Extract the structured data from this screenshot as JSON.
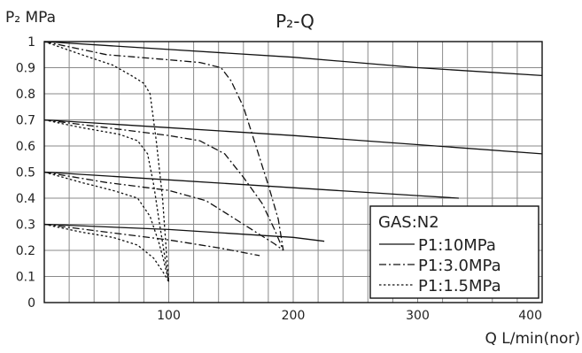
{
  "chart_data": {
    "type": "line",
    "title": "P₂-Q",
    "ylabel": "P₂ MPa",
    "xlabel": "Q L/min(nor)",
    "xlim": [
      0,
      400
    ],
    "ylim": [
      0,
      1
    ],
    "x_ticks": [
      100,
      200,
      300,
      400
    ],
    "x_tick_labels": [
      "100",
      "200",
      "300",
      "400"
    ],
    "y_ticks": [
      0,
      0.1,
      0.2,
      0.3,
      0.4,
      0.5,
      0.6,
      0.7,
      0.8,
      0.9,
      1
    ],
    "y_tick_labels": [
      "0",
      "0.1",
      "0.2",
      "0.3",
      "0.4",
      "0.5",
      "0.6",
      "0.7",
      "0.8",
      "0.9",
      "1"
    ],
    "grid": true,
    "legend": {
      "position": "bottom-right",
      "title": "GAS:N2",
      "entries": [
        {
          "label": "P1:10MPa",
          "style": "solid"
        },
        {
          "label": "P1:3.0MPa",
          "style": "dashdot"
        },
        {
          "label": "P1:1.5MPa",
          "style": "dotted"
        }
      ]
    },
    "series": [
      {
        "style": "solid",
        "points": [
          [
            0,
            1.0
          ],
          [
            100,
            0.97
          ],
          [
            200,
            0.94
          ],
          [
            300,
            0.9
          ],
          [
            400,
            0.87
          ]
        ]
      },
      {
        "style": "solid",
        "points": [
          [
            0,
            0.7
          ],
          [
            100,
            0.67
          ],
          [
            200,
            0.64
          ],
          [
            300,
            0.605
          ],
          [
            400,
            0.57
          ]
        ]
      },
      {
        "style": "solid",
        "points": [
          [
            0,
            0.5
          ],
          [
            100,
            0.47
          ],
          [
            200,
            0.44
          ],
          [
            300,
            0.41
          ],
          [
            333,
            0.4
          ]
        ]
      },
      {
        "style": "solid",
        "points": [
          [
            0,
            0.3
          ],
          [
            100,
            0.28
          ],
          [
            200,
            0.25
          ],
          [
            225,
            0.235
          ]
        ]
      },
      {
        "style": "dashdot",
        "points": [
          [
            0,
            1.0
          ],
          [
            50,
            0.95
          ],
          [
            100,
            0.93
          ],
          [
            125,
            0.92
          ],
          [
            142,
            0.9
          ],
          [
            150,
            0.85
          ],
          [
            160,
            0.75
          ],
          [
            170,
            0.6
          ],
          [
            180,
            0.45
          ],
          [
            188,
            0.32
          ],
          [
            192,
            0.2
          ]
        ]
      },
      {
        "style": "dashdot",
        "points": [
          [
            0,
            0.7
          ],
          [
            50,
            0.67
          ],
          [
            100,
            0.64
          ],
          [
            125,
            0.62
          ],
          [
            145,
            0.57
          ],
          [
            160,
            0.48
          ],
          [
            175,
            0.38
          ],
          [
            185,
            0.28
          ],
          [
            192,
            0.2
          ]
        ]
      },
      {
        "style": "dashdot",
        "points": [
          [
            0,
            0.5
          ],
          [
            50,
            0.46
          ],
          [
            100,
            0.43
          ],
          [
            130,
            0.39
          ],
          [
            150,
            0.33
          ],
          [
            170,
            0.27
          ],
          [
            185,
            0.225
          ],
          [
            192,
            0.2
          ]
        ]
      },
      {
        "style": "dashdot",
        "points": [
          [
            0,
            0.3
          ],
          [
            50,
            0.27
          ],
          [
            100,
            0.24
          ],
          [
            140,
            0.21
          ],
          [
            173,
            0.18
          ]
        ]
      },
      {
        "style": "dotted",
        "points": [
          [
            0,
            1.0
          ],
          [
            30,
            0.95
          ],
          [
            55,
            0.91
          ],
          [
            70,
            0.87
          ],
          [
            80,
            0.84
          ],
          [
            85,
            0.8
          ],
          [
            90,
            0.62
          ],
          [
            95,
            0.4
          ],
          [
            98,
            0.2
          ],
          [
            100,
            0.08
          ]
        ]
      },
      {
        "style": "dotted",
        "points": [
          [
            0,
            0.7
          ],
          [
            30,
            0.67
          ],
          [
            60,
            0.645
          ],
          [
            75,
            0.62
          ],
          [
            83,
            0.57
          ],
          [
            88,
            0.45
          ],
          [
            92,
            0.32
          ],
          [
            96,
            0.2
          ],
          [
            100,
            0.08
          ]
        ]
      },
      {
        "style": "dotted",
        "points": [
          [
            0,
            0.5
          ],
          [
            30,
            0.46
          ],
          [
            55,
            0.43
          ],
          [
            75,
            0.4
          ],
          [
            85,
            0.33
          ],
          [
            92,
            0.23
          ],
          [
            96,
            0.16
          ],
          [
            100,
            0.08
          ]
        ]
      },
      {
        "style": "dotted",
        "points": [
          [
            0,
            0.3
          ],
          [
            30,
            0.27
          ],
          [
            55,
            0.25
          ],
          [
            75,
            0.22
          ],
          [
            88,
            0.17
          ],
          [
            95,
            0.12
          ],
          [
            100,
            0.08
          ]
        ]
      }
    ]
  }
}
